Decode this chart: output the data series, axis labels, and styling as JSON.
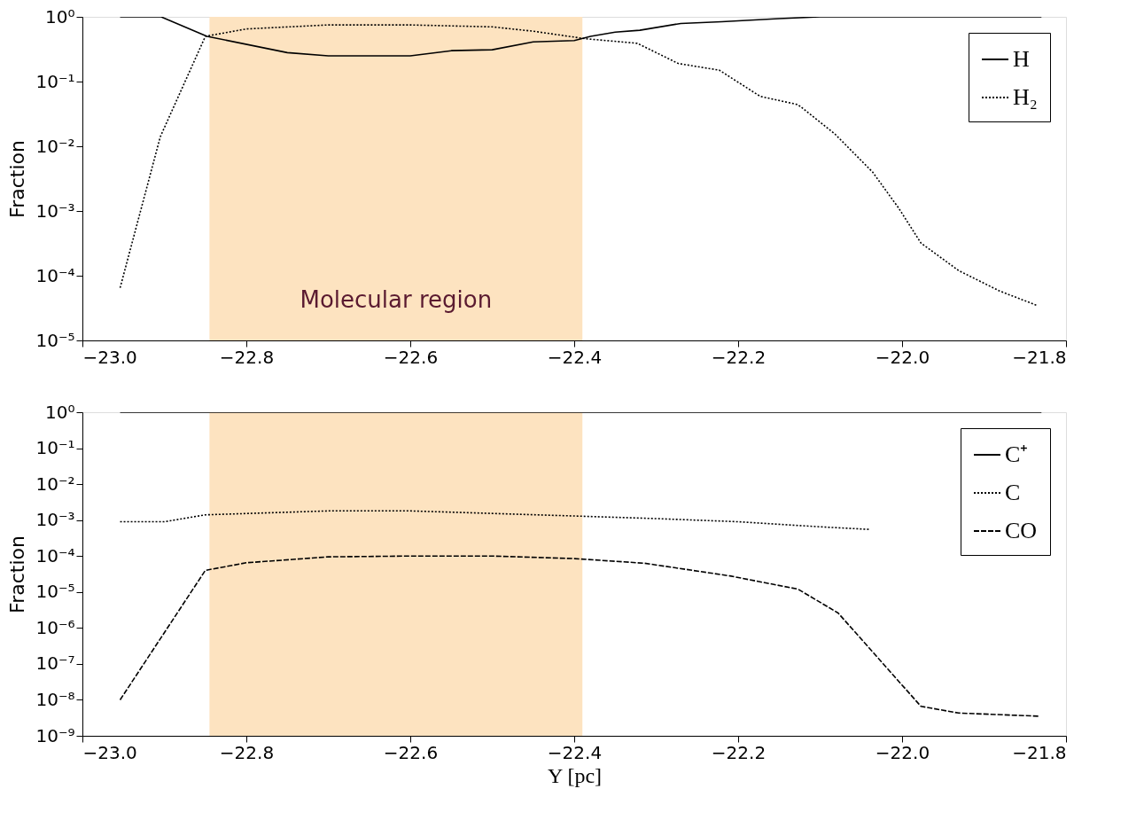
{
  "chart_data": [
    {
      "type": "line",
      "ylabel": "Fraction",
      "log": true,
      "legend": "top right",
      "grid": false,
      "xlim": [
        -23.0,
        -21.8
      ],
      "xticks": [
        {
          "value": -23.0,
          "label": "−23.0"
        },
        {
          "value": -22.8,
          "label": "−22.8"
        },
        {
          "value": -22.6,
          "label": "−22.6"
        },
        {
          "value": -22.4,
          "label": "−22.4"
        },
        {
          "value": -22.2,
          "label": "−22.2"
        },
        {
          "value": -22.0,
          "label": "−22.0"
        },
        {
          "value": -21.8,
          "label": "−21.8"
        }
      ],
      "ylim": [
        1e-05,
        1
      ],
      "yticks": [
        {
          "value": 1e-05,
          "label": "10⁻⁵"
        },
        {
          "value": 0.0001,
          "label": "10⁻⁴"
        },
        {
          "value": 0.001,
          "label": "10⁻³"
        },
        {
          "value": 0.01,
          "label": "10⁻²"
        },
        {
          "value": 0.1,
          "label": "10⁻¹"
        },
        {
          "value": 1,
          "label": "10⁰"
        }
      ],
      "bands": [
        {
          "axis": "x",
          "from": -22.845,
          "to": -22.39,
          "label": "Molecular region",
          "color": "#fde3c0"
        }
      ],
      "series": [
        {
          "name": "H",
          "color": "#000000",
          "line_style": "solid",
          "x": [
            -22.954,
            -22.904,
            -22.848,
            -22.75,
            -22.7,
            -22.6,
            -22.55,
            -22.5,
            -22.45,
            -22.4,
            -22.38,
            -22.35,
            -22.32,
            -22.27,
            -22.22,
            -22.15,
            -22.1,
            -22.0,
            -21.9,
            -21.83
          ],
          "values": [
            1,
            1,
            0.5,
            0.28,
            0.25,
            0.25,
            0.3,
            0.31,
            0.41,
            0.43,
            0.5,
            0.58,
            0.62,
            0.79,
            0.84,
            0.94,
            1,
            1,
            1,
            1
          ]
        },
        {
          "name": "H₂",
          "color": "#000000",
          "line_style": "dotted",
          "x": [
            -22.954,
            -22.905,
            -22.85,
            -22.8,
            -22.7,
            -22.6,
            -22.5,
            -22.45,
            -22.387,
            -22.323,
            -22.273,
            -22.223,
            -22.173,
            -22.127,
            -22.082,
            -22.036,
            -22.004,
            -21.977,
            -21.931,
            -21.881,
            -21.836
          ],
          "values": [
            6.5e-05,
            0.014,
            0.5,
            0.65,
            0.75,
            0.75,
            0.7,
            0.6,
            0.46,
            0.39,
            0.19,
            0.15,
            0.059,
            0.044,
            0.0155,
            0.004,
            0.0011,
            0.00032,
            0.00012,
            5.8e-05,
            3.5e-05
          ]
        }
      ]
    },
    {
      "type": "line",
      "ylabel": "Fraction",
      "xlabel": "Y [pc]",
      "log": true,
      "legend": "top right",
      "grid": false,
      "xlim": [
        -23.0,
        -21.8
      ],
      "xticks": [
        {
          "value": -23.0,
          "label": "−23.0"
        },
        {
          "value": -22.8,
          "label": "−22.8"
        },
        {
          "value": -22.6,
          "label": "−22.6"
        },
        {
          "value": -22.4,
          "label": "−22.4"
        },
        {
          "value": -22.2,
          "label": "−22.2"
        },
        {
          "value": -22.0,
          "label": "−22.0"
        },
        {
          "value": -21.8,
          "label": "−21.8"
        }
      ],
      "ylim": [
        1e-09,
        1
      ],
      "yticks": [
        {
          "value": 1e-09,
          "label": "10⁻⁹"
        },
        {
          "value": 1e-08,
          "label": "10⁻⁸"
        },
        {
          "value": 1e-07,
          "label": "10⁻⁷"
        },
        {
          "value": 1e-06,
          "label": "10⁻⁶"
        },
        {
          "value": 1e-05,
          "label": "10⁻⁵"
        },
        {
          "value": 0.0001,
          "label": "10⁻⁴"
        },
        {
          "value": 0.001,
          "label": "10⁻³"
        },
        {
          "value": 0.01,
          "label": "10⁻²"
        },
        {
          "value": 0.1,
          "label": "10⁻¹"
        },
        {
          "value": 1,
          "label": "10⁰"
        }
      ],
      "bands": [
        {
          "axis": "x",
          "from": -22.845,
          "to": -22.39,
          "color": "#fde3c0"
        }
      ],
      "series": [
        {
          "name": "C⁺",
          "color": "#000000",
          "line_style": "solid",
          "x": [
            -22.954,
            -22.8,
            -22.6,
            -22.4,
            -22.2,
            -22.0,
            -21.83
          ],
          "values": [
            1,
            1,
            1,
            1,
            1,
            1,
            1
          ]
        },
        {
          "name": "C",
          "color": "#000000",
          "line_style": "dotted",
          "x": [
            -22.954,
            -22.9,
            -22.85,
            -22.7,
            -22.6,
            -22.4,
            -22.3,
            -22.2,
            -22.1,
            -22.04
          ],
          "values": [
            0.0009,
            0.0009,
            0.0014,
            0.0018,
            0.0018,
            0.0013,
            0.0011,
            0.0009,
            0.00065,
            0.00055
          ]
        },
        {
          "name": "CO",
          "color": "#000000",
          "line_style": "dashed",
          "x": [
            -22.954,
            -22.85,
            -22.8,
            -22.7,
            -22.6,
            -22.5,
            -22.4,
            -22.314,
            -22.21,
            -22.127,
            -22.078,
            -21.977,
            -21.931,
            -21.832
          ],
          "values": [
            1e-08,
            4e-05,
            6.5e-05,
            9.5e-05,
            0.0001,
            0.0001,
            8.5e-05,
            6.3e-05,
            2.8e-05,
            1.2e-05,
            2.6e-06,
            6.6e-09,
            4.3e-09,
            3.5e-09
          ]
        }
      ]
    }
  ]
}
